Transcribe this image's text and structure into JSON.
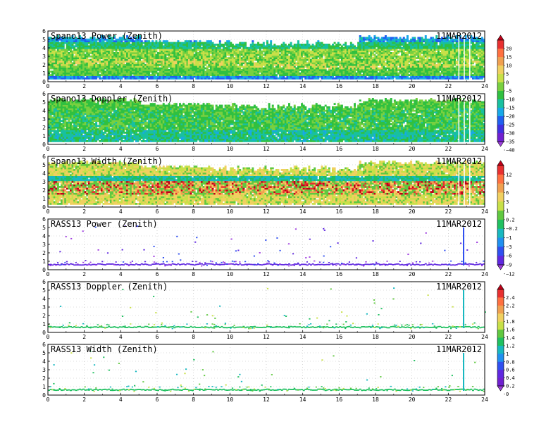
{
  "figure": {
    "date": "11MAR2012"
  },
  "chart_data": [
    {
      "type": "heatmap",
      "title": "Spano13 Power (Zenith)",
      "x_range": [
        0,
        24
      ],
      "y_range": [
        0,
        6
      ],
      "x_ticks": [
        0,
        2,
        4,
        6,
        8,
        10,
        12,
        14,
        16,
        18,
        20,
        22,
        24
      ],
      "y_ticks": [
        0,
        1,
        2,
        3,
        4,
        5,
        6
      ],
      "grid": true,
      "pattern": "dense_power",
      "colorbar": "power"
    },
    {
      "type": "heatmap",
      "title": "Spano13 Doppler (Zenith)",
      "x_range": [
        0,
        24
      ],
      "y_range": [
        0,
        6
      ],
      "x_ticks": [
        0,
        2,
        4,
        6,
        8,
        10,
        12,
        14,
        16,
        18,
        20,
        22,
        24
      ],
      "y_ticks": [
        0,
        1,
        2,
        3,
        4,
        5,
        6
      ],
      "grid": true,
      "pattern": "dense_doppler",
      "colorbar": "power"
    },
    {
      "type": "heatmap",
      "title": "Spano13 Width (Zenith)",
      "x_range": [
        0,
        24
      ],
      "y_range": [
        0,
        6
      ],
      "x_ticks": [
        0,
        2,
        4,
        6,
        8,
        10,
        12,
        14,
        16,
        18,
        20,
        22,
        24
      ],
      "y_ticks": [
        0,
        1,
        2,
        3,
        4,
        5,
        6
      ],
      "grid": true,
      "pattern": "dense_width",
      "colorbar": "width"
    },
    {
      "type": "heatmap",
      "title": "RASS13 Power (Zenith)",
      "x_range": [
        0,
        24
      ],
      "y_range": [
        0,
        6
      ],
      "x_ticks": [
        0,
        2,
        4,
        6,
        8,
        10,
        12,
        14,
        16,
        18,
        20,
        22,
        24
      ],
      "y_ticks": [
        0,
        1,
        2,
        3,
        4,
        5,
        6
      ],
      "grid": true,
      "pattern": "sparse_power",
      "colorbar": "width"
    },
    {
      "type": "heatmap",
      "title": "RASS13 Doppler (Zenith)",
      "x_range": [
        0,
        24
      ],
      "y_range": [
        0,
        6
      ],
      "x_ticks": [
        0,
        2,
        4,
        6,
        8,
        10,
        12,
        14,
        16,
        18,
        20,
        22,
        24
      ],
      "y_ticks": [
        0,
        1,
        2,
        3,
        4,
        5,
        6
      ],
      "grid": true,
      "pattern": "sparse_doppler",
      "colorbar": "rass"
    },
    {
      "type": "heatmap",
      "title": "RASS13 Width (Zenith)",
      "x_range": [
        0,
        24
      ],
      "y_range": [
        0,
        6
      ],
      "x_ticks": [
        0,
        2,
        4,
        6,
        8,
        10,
        12,
        14,
        16,
        18,
        20,
        22,
        24
      ],
      "y_ticks": [
        0,
        1,
        2,
        3,
        4,
        5,
        6
      ],
      "grid": true,
      "pattern": "sparse_width",
      "colorbar": "rass"
    }
  ],
  "colorbars": {
    "power": {
      "labels": [
        "20",
        "15",
        "10",
        "5",
        "0",
        "−5",
        "−10",
        "−15",
        "−20",
        "−25",
        "−30",
        "−35",
        "−40"
      ],
      "colors": [
        "#c00018",
        "#e83030",
        "#ff7040",
        "#f0a050",
        "#f0d060",
        "#c8e048",
        "#78d040",
        "#30c040",
        "#18c0a0",
        "#18a8e8",
        "#2060f0",
        "#4030e0",
        "#7020d0",
        "#a040e0"
      ]
    },
    "width": {
      "labels": [
        "12",
        "9",
        "6",
        "3",
        "1",
        "0.2",
        "−0.2",
        "−1",
        "−3",
        "−6",
        "−9",
        "−12"
      ],
      "colors": [
        "#c00018",
        "#e83030",
        "#ff7040",
        "#f0a050",
        "#f0d060",
        "#c8e048",
        "#60c840",
        "#20c060",
        "#18b8c0",
        "#2090f0",
        "#3050f0",
        "#6028e0",
        "#a040e0"
      ]
    },
    "rass": {
      "labels": [
        "2.4",
        "2.2",
        "2",
        "1.8",
        "1.6",
        "1.4",
        "1.2",
        "1",
        "0.8",
        "0.6",
        "0.4",
        "0.2",
        "0"
      ],
      "colors": [
        "#c00018",
        "#e83030",
        "#ff7040",
        "#f0a050",
        "#f0d060",
        "#c8e048",
        "#60c840",
        "#20c060",
        "#18b8c0",
        "#2090f0",
        "#3050f0",
        "#6028e0",
        "#7020d0",
        "#a040e0"
      ]
    }
  }
}
